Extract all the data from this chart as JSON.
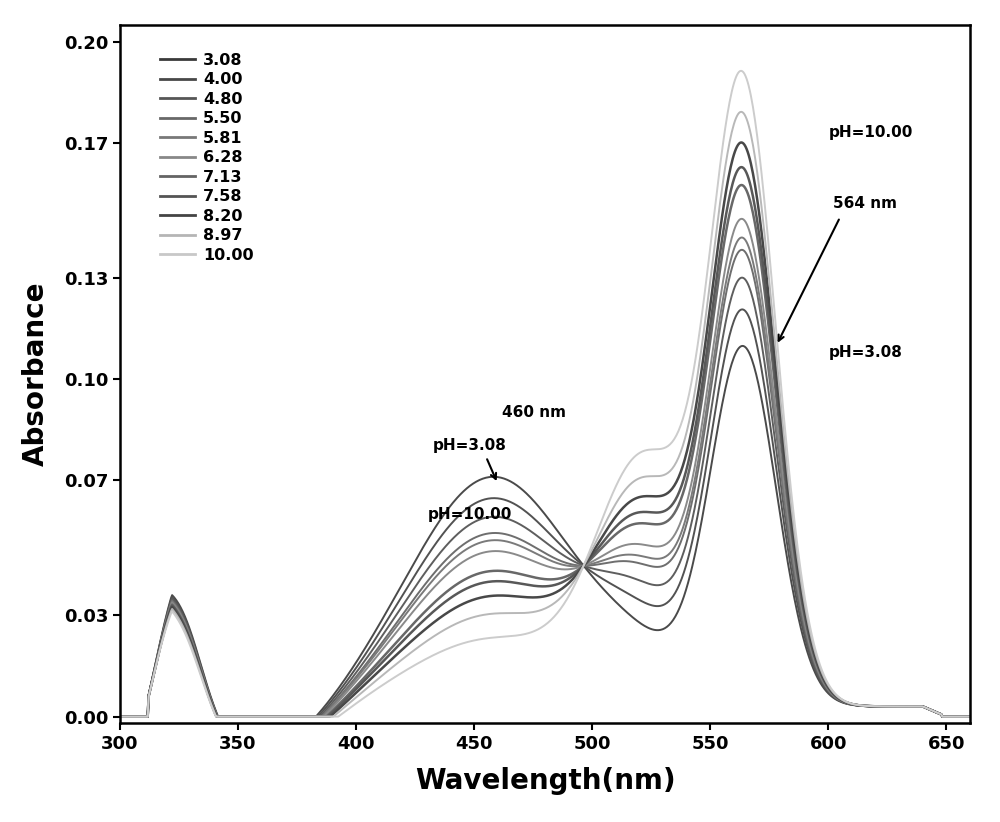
{
  "ph_values": [
    3.08,
    4.0,
    4.8,
    5.5,
    5.81,
    6.28,
    7.13,
    7.58,
    8.2,
    8.97,
    10.0
  ],
  "xlabel": "Wavelength(nm)",
  "ylabel": "Absorbance",
  "xlim": [
    300,
    660
  ],
  "ylim": [
    -0.002,
    0.205
  ],
  "yticks": [
    0.0,
    0.03,
    0.07,
    0.1,
    0.13,
    0.17,
    0.2
  ],
  "xticks": [
    300,
    350,
    400,
    450,
    500,
    550,
    600,
    650
  ],
  "line_colors": {
    "3.08": "#4a4a4a",
    "4.00": "#525252",
    "4.80": "#5e5e5e",
    "5.50": "#6e6e6e",
    "5.81": "#7a7a7a",
    "6.28": "#8a8a8a",
    "7.13": "#686868",
    "7.58": "#585858",
    "8.20": "#484848",
    "8.97": "#b8b8b8",
    "10.00": "#cccccc"
  },
  "line_widths": {
    "3.08": 1.4,
    "4.00": 1.4,
    "4.80": 1.4,
    "5.50": 1.4,
    "5.81": 1.4,
    "6.28": 1.4,
    "7.13": 1.8,
    "7.58": 1.8,
    "8.20": 1.8,
    "8.97": 1.4,
    "10.00": 1.4
  },
  "legend_colors": {
    "3.08": "#3a3a3a",
    "4.00": "#484848",
    "4.80": "#565656",
    "5.50": "#686868",
    "5.81": "#787878",
    "6.28": "#888888",
    "7.13": "#646464",
    "7.58": "#545454",
    "8.20": "#444444",
    "8.97": "#b5b5b5",
    "10.00": "#c8c8c8"
  }
}
